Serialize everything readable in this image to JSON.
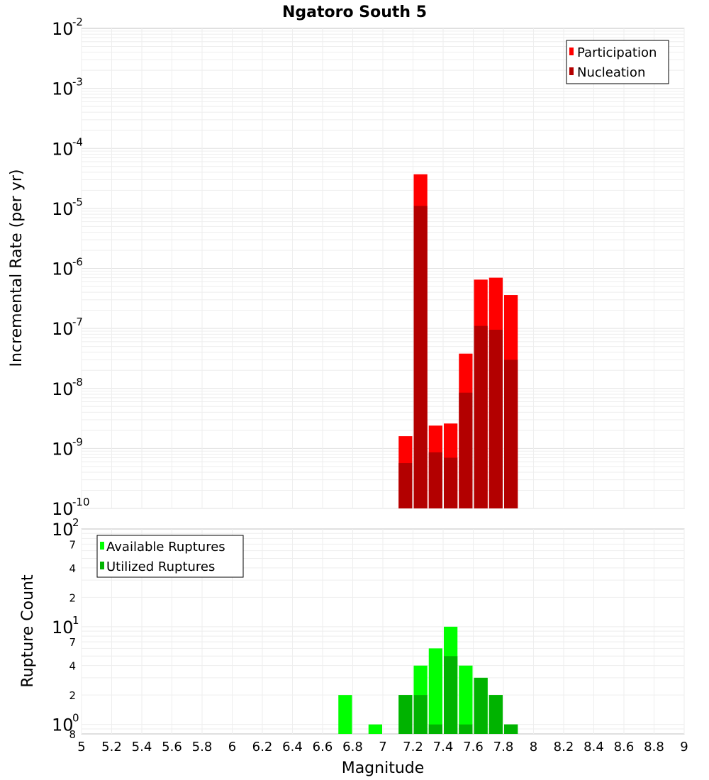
{
  "chart_data": [
    {
      "type": "bar",
      "title": "Ngatoro South 5",
      "xlabel": "",
      "ylabel": "Incremental Rate (per yr)",
      "yscale": "log",
      "xlim": [
        5,
        9
      ],
      "ylim": [
        1e-10,
        0.01
      ],
      "y_ticks": [
        {
          "base": "10",
          "exp": "-10",
          "value": -10
        },
        {
          "base": "10",
          "exp": "-9",
          "value": -9
        },
        {
          "base": "10",
          "exp": "-8",
          "value": -8
        },
        {
          "base": "10",
          "exp": "-7",
          "value": -7
        },
        {
          "base": "10",
          "exp": "-6",
          "value": -6
        },
        {
          "base": "10",
          "exp": "-5",
          "value": -5
        },
        {
          "base": "10",
          "exp": "-4",
          "value": -4
        },
        {
          "base": "10",
          "exp": "-3",
          "value": -3
        },
        {
          "base": "10",
          "exp": "-2",
          "value": -2
        }
      ],
      "legend": {
        "position": "top-right"
      },
      "series": [
        {
          "name": "Participation",
          "color": "#ff0000",
          "x": [
            7.15,
            7.25,
            7.35,
            7.45,
            7.55,
            7.65,
            7.75,
            7.85
          ],
          "values": [
            1.6e-09,
            3.7e-05,
            2.4e-09,
            2.6e-09,
            3.8e-08,
            6.5e-07,
            7e-07,
            3.6e-07
          ]
        },
        {
          "name": "Nucleation",
          "color": "#b30000",
          "x": [
            7.15,
            7.25,
            7.35,
            7.45,
            7.55,
            7.65,
            7.75,
            7.85
          ],
          "values": [
            5.7e-10,
            1.1e-05,
            8.6e-10,
            7e-10,
            8.5e-09,
            1.1e-07,
            9.5e-08,
            3e-08
          ]
        }
      ]
    },
    {
      "type": "bar",
      "xlabel": "Magnitude",
      "ylabel": "Rupture Count",
      "yscale": "log",
      "xlim": [
        5,
        9
      ],
      "ylim": [
        0.8,
        100
      ],
      "y_ticks": [
        {
          "base": "10",
          "exp": "0",
          "value": 1
        },
        {
          "base": "10",
          "exp": "1",
          "value": 10
        },
        {
          "base": "10",
          "exp": "2",
          "value": 100
        }
      ],
      "y_minor_ticks": [
        {
          "label": "8",
          "value": 0.8
        },
        {
          "label": "2",
          "value": 2
        },
        {
          "label": "4",
          "value": 4
        },
        {
          "label": "7",
          "value": 7
        },
        {
          "label": "2",
          "value": 20
        },
        {
          "label": "4",
          "value": 40
        },
        {
          "label": "7",
          "value": 70
        }
      ],
      "x_ticks": [
        "5",
        "5.2",
        "5.4",
        "5.6",
        "5.8",
        "6",
        "6.2",
        "6.4",
        "6.6",
        "6.8",
        "7",
        "7.2",
        "7.4",
        "7.6",
        "7.8",
        "8",
        "8.2",
        "8.4",
        "8.6",
        "8.8",
        "9"
      ],
      "legend": {
        "position": "top-left"
      },
      "series": [
        {
          "name": "Available Ruptures",
          "color": "#00ff00",
          "x": [
            6.75,
            6.95,
            7.15,
            7.25,
            7.35,
            7.45,
            7.55,
            7.65,
            7.75,
            7.85
          ],
          "values": [
            2,
            1,
            2,
            4,
            6,
            10,
            4,
            3,
            2,
            1
          ]
        },
        {
          "name": "Utilized Ruptures",
          "color": "#00b300",
          "x": [
            7.15,
            7.25,
            7.35,
            7.45,
            7.55,
            7.65,
            7.75,
            7.85
          ],
          "values": [
            2,
            2,
            1,
            5,
            1,
            3,
            2,
            1
          ]
        }
      ]
    }
  ]
}
